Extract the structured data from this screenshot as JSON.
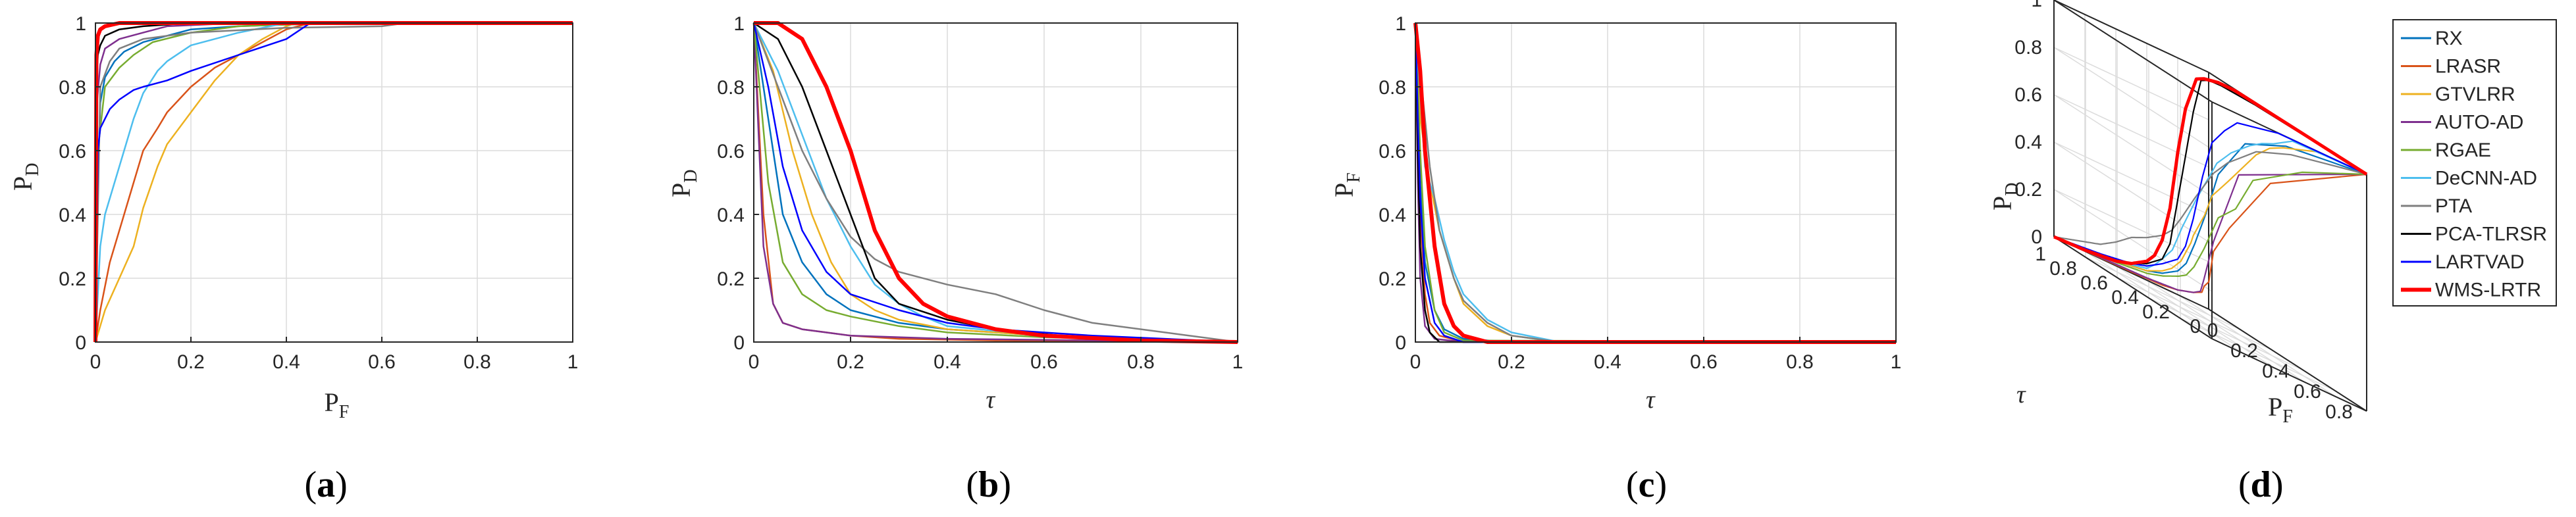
{
  "chart_data": [
    {
      "id": "a",
      "type": "line",
      "caption": "a",
      "xlabel": "P",
      "xlabel_sub": "F",
      "ylabel": "P",
      "ylabel_sub": "D",
      "xlim": [
        0,
        1
      ],
      "ylim": [
        0,
        1
      ],
      "xticks": [
        0,
        0.2,
        0.4,
        0.6,
        0.8,
        1
      ],
      "yticks": [
        0,
        0.2,
        0.4,
        0.6,
        0.8,
        1
      ],
      "grid": true,
      "series": [
        {
          "name": "RX",
          "color": "#0072bd",
          "x": [
            0,
            0.005,
            0.01,
            0.02,
            0.04,
            0.06,
            0.1,
            0.15,
            0.2,
            0.3,
            0.5,
            1
          ],
          "y": [
            0,
            0.5,
            0.75,
            0.83,
            0.88,
            0.91,
            0.94,
            0.96,
            0.98,
            0.99,
            1,
            1
          ]
        },
        {
          "name": "LRASR",
          "color": "#d95319",
          "x": [
            0,
            0.01,
            0.03,
            0.05,
            0.08,
            0.1,
            0.13,
            0.15,
            0.2,
            0.25,
            0.3,
            0.35,
            0.4,
            0.45,
            1
          ],
          "y": [
            0,
            0.1,
            0.25,
            0.35,
            0.5,
            0.6,
            0.67,
            0.72,
            0.8,
            0.86,
            0.9,
            0.94,
            0.98,
            1,
            1
          ]
        },
        {
          "name": "GTVLRR",
          "color": "#edb120",
          "x": [
            0,
            0.02,
            0.05,
            0.08,
            0.1,
            0.13,
            0.15,
            0.2,
            0.25,
            0.3,
            0.35,
            0.4,
            0.42,
            1
          ],
          "y": [
            0,
            0.1,
            0.2,
            0.3,
            0.42,
            0.55,
            0.62,
            0.72,
            0.82,
            0.9,
            0.95,
            0.99,
            1,
            1
          ]
        },
        {
          "name": "AUTO-AD",
          "color": "#7e2f8e",
          "x": [
            0,
            0.003,
            0.01,
            0.02,
            0.05,
            0.1,
            0.15,
            0.3,
            1
          ],
          "y": [
            0,
            0.75,
            0.87,
            0.92,
            0.95,
            0.97,
            0.99,
            1,
            1
          ]
        },
        {
          "name": "RGAE",
          "color": "#77ac30",
          "x": [
            0,
            0.005,
            0.02,
            0.05,
            0.08,
            0.12,
            0.2,
            0.3,
            0.5,
            1
          ],
          "y": [
            0,
            0.6,
            0.8,
            0.86,
            0.9,
            0.94,
            0.97,
            0.99,
            1,
            1
          ]
        },
        {
          "name": "DeCNN-AD",
          "color": "#4dbeee",
          "x": [
            0,
            0.01,
            0.02,
            0.04,
            0.06,
            0.08,
            0.1,
            0.13,
            0.15,
            0.2,
            0.3,
            0.4,
            1
          ],
          "y": [
            0,
            0.3,
            0.4,
            0.5,
            0.6,
            0.7,
            0.78,
            0.85,
            0.88,
            0.93,
            0.97,
            1,
            1
          ]
        },
        {
          "name": "PTA",
          "color": "#7f7f7f",
          "x": [
            0,
            0.01,
            0.03,
            0.05,
            0.1,
            0.2,
            0.4,
            0.6,
            0.65,
            0.9,
            0.95,
            1
          ],
          "y": [
            0,
            0.8,
            0.88,
            0.92,
            0.95,
            0.97,
            0.985,
            0.99,
            1,
            1,
            1,
            1
          ]
        },
        {
          "name": "PCA-TLRSR",
          "color": "#000000",
          "x": [
            0,
            0.002,
            0.005,
            0.01,
            0.02,
            0.05,
            0.1,
            0.2,
            1
          ],
          "y": [
            0,
            0.8,
            0.9,
            0.93,
            0.96,
            0.98,
            0.99,
            1,
            1
          ]
        },
        {
          "name": "LARTVAD",
          "color": "#0000ff",
          "x": [
            0,
            0.005,
            0.01,
            0.02,
            0.03,
            0.05,
            0.08,
            0.1,
            0.15,
            0.2,
            0.3,
            0.4,
            0.45,
            1
          ],
          "y": [
            0,
            0.6,
            0.67,
            0.7,
            0.73,
            0.76,
            0.79,
            0.8,
            0.82,
            0.85,
            0.9,
            0.95,
            1,
            1
          ]
        },
        {
          "name": "WMS-LRTR",
          "color": "#ff0000",
          "x": [
            0,
            0.002,
            0.005,
            0.01,
            0.02,
            0.05,
            0.1,
            1
          ],
          "y": [
            0,
            0.9,
            0.96,
            0.98,
            0.99,
            1,
            1,
            1
          ]
        }
      ]
    },
    {
      "id": "b",
      "type": "line",
      "caption": "b",
      "xlabel": "τ",
      "ylabel": "P",
      "ylabel_sub": "D",
      "xlim": [
        0,
        1
      ],
      "ylim": [
        0,
        1
      ],
      "xticks": [
        0,
        0.2,
        0.4,
        0.6,
        0.8,
        1
      ],
      "yticks": [
        0,
        0.2,
        0.4,
        0.6,
        0.8,
        1
      ],
      "grid": true,
      "series": [
        {
          "name": "RX",
          "color": "#0072bd",
          "x": [
            0,
            0.03,
            0.06,
            0.1,
            0.15,
            0.2,
            0.3,
            0.4,
            0.6,
            0.8,
            1
          ],
          "y": [
            1,
            0.7,
            0.4,
            0.25,
            0.15,
            0.1,
            0.06,
            0.04,
            0.02,
            0.01,
            0
          ]
        },
        {
          "name": "LRASR",
          "color": "#d95319",
          "x": [
            0,
            0.02,
            0.04,
            0.06,
            0.1,
            0.15,
            0.2,
            0.3,
            0.5,
            1
          ],
          "y": [
            1,
            0.4,
            0.12,
            0.06,
            0.04,
            0.03,
            0.02,
            0.01,
            0.005,
            0
          ]
        },
        {
          "name": "GTVLRR",
          "color": "#edb120",
          "x": [
            0,
            0.04,
            0.08,
            0.12,
            0.16,
            0.2,
            0.25,
            0.3,
            0.4,
            0.6,
            1
          ],
          "y": [
            1,
            0.85,
            0.6,
            0.4,
            0.25,
            0.15,
            0.1,
            0.07,
            0.04,
            0.02,
            0
          ]
        },
        {
          "name": "AUTO-AD",
          "color": "#7e2f8e",
          "x": [
            0,
            0.02,
            0.04,
            0.06,
            0.1,
            0.2,
            0.4,
            1
          ],
          "y": [
            1,
            0.3,
            0.12,
            0.06,
            0.04,
            0.02,
            0.01,
            0
          ]
        },
        {
          "name": "RGAE",
          "color": "#77ac30",
          "x": [
            0,
            0.03,
            0.06,
            0.1,
            0.15,
            0.2,
            0.3,
            0.4,
            0.6,
            1
          ],
          "y": [
            1,
            0.5,
            0.25,
            0.15,
            0.1,
            0.08,
            0.05,
            0.03,
            0.015,
            0
          ]
        },
        {
          "name": "DeCNN-AD",
          "color": "#4dbeee",
          "x": [
            0,
            0.05,
            0.1,
            0.15,
            0.2,
            0.25,
            0.3,
            0.35,
            0.4,
            0.6,
            1
          ],
          "y": [
            1,
            0.85,
            0.65,
            0.45,
            0.3,
            0.18,
            0.12,
            0.08,
            0.05,
            0.02,
            0
          ]
        },
        {
          "name": "PTA",
          "color": "#7f7f7f",
          "x": [
            0,
            0.05,
            0.1,
            0.15,
            0.2,
            0.25,
            0.3,
            0.4,
            0.5,
            0.6,
            0.7,
            1
          ],
          "y": [
            1,
            0.8,
            0.6,
            0.45,
            0.33,
            0.26,
            0.22,
            0.18,
            0.15,
            0.1,
            0.06,
            0
          ]
        },
        {
          "name": "PCA-TLRSR",
          "color": "#000000",
          "x": [
            0,
            0.05,
            0.1,
            0.15,
            0.2,
            0.25,
            0.3,
            0.4,
            0.5,
            0.7,
            1
          ],
          "y": [
            1,
            0.95,
            0.8,
            0.6,
            0.4,
            0.2,
            0.12,
            0.07,
            0.04,
            0.01,
            0
          ]
        },
        {
          "name": "LARTVAD",
          "color": "#0000ff",
          "x": [
            0,
            0.03,
            0.06,
            0.1,
            0.15,
            0.2,
            0.3,
            0.4,
            0.5,
            0.7,
            1
          ],
          "y": [
            1,
            0.8,
            0.55,
            0.35,
            0.22,
            0.15,
            0.1,
            0.06,
            0.04,
            0.02,
            0
          ]
        },
        {
          "name": "WMS-LRTR",
          "color": "#ff0000",
          "x": [
            0,
            0.05,
            0.1,
            0.15,
            0.2,
            0.25,
            0.3,
            0.35,
            0.4,
            0.5,
            0.6,
            0.8,
            1
          ],
          "y": [
            1,
            1,
            0.95,
            0.8,
            0.6,
            0.35,
            0.2,
            0.12,
            0.08,
            0.04,
            0.02,
            0.005,
            0
          ]
        }
      ]
    },
    {
      "id": "c",
      "type": "line",
      "caption": "c",
      "xlabel": "τ",
      "ylabel": "P",
      "ylabel_sub": "F",
      "xlim": [
        0,
        1
      ],
      "ylim": [
        0,
        1
      ],
      "xticks": [
        0,
        0.2,
        0.4,
        0.6,
        0.8,
        1
      ],
      "yticks": [
        0,
        0.2,
        0.4,
        0.6,
        0.8,
        1
      ],
      "grid": true,
      "series": [
        {
          "name": "RX",
          "color": "#0072bd",
          "x": [
            0,
            0.01,
            0.02,
            0.04,
            0.06,
            0.1,
            0.2,
            1
          ],
          "y": [
            1,
            0.5,
            0.25,
            0.1,
            0.04,
            0.01,
            0,
            0
          ]
        },
        {
          "name": "LRASR",
          "color": "#d95319",
          "x": [
            0,
            0.01,
            0.02,
            0.03,
            0.05,
            0.1,
            1
          ],
          "y": [
            1,
            0.4,
            0.15,
            0.06,
            0.02,
            0,
            0
          ]
        },
        {
          "name": "GTVLRR",
          "color": "#edb120",
          "x": [
            0,
            0.01,
            0.03,
            0.05,
            0.08,
            0.1,
            0.15,
            0.2,
            0.3,
            1
          ],
          "y": [
            1,
            0.7,
            0.5,
            0.35,
            0.2,
            0.12,
            0.05,
            0.02,
            0,
            0
          ]
        },
        {
          "name": "AUTO-AD",
          "color": "#7e2f8e",
          "x": [
            0,
            0.005,
            0.01,
            0.02,
            0.04,
            0.1,
            1
          ],
          "y": [
            1,
            0.5,
            0.2,
            0.05,
            0.01,
            0,
            0
          ]
        },
        {
          "name": "RGAE",
          "color": "#77ac30",
          "x": [
            0,
            0.01,
            0.02,
            0.04,
            0.06,
            0.1,
            1
          ],
          "y": [
            1,
            0.6,
            0.3,
            0.1,
            0.03,
            0.005,
            0
          ]
        },
        {
          "name": "DeCNN-AD",
          "color": "#4dbeee",
          "x": [
            0,
            0.02,
            0.04,
            0.06,
            0.08,
            0.1,
            0.15,
            0.2,
            0.3,
            1
          ],
          "y": [
            1,
            0.55,
            0.45,
            0.32,
            0.22,
            0.15,
            0.07,
            0.03,
            0,
            0
          ]
        },
        {
          "name": "PTA",
          "color": "#7f7f7f",
          "x": [
            0,
            0.01,
            0.03,
            0.05,
            0.08,
            0.1,
            0.15,
            0.2,
            0.3,
            1
          ],
          "y": [
            1,
            0.85,
            0.55,
            0.35,
            0.2,
            0.13,
            0.06,
            0.02,
            0,
            0
          ]
        },
        {
          "name": "PCA-TLRSR",
          "color": "#000000",
          "x": [
            0,
            0.005,
            0.01,
            0.02,
            0.03,
            0.05,
            1
          ],
          "y": [
            1,
            0.6,
            0.3,
            0.1,
            0.03,
            0,
            0
          ]
        },
        {
          "name": "LARTVAD",
          "color": "#0000ff",
          "x": [
            0,
            0.005,
            0.01,
            0.02,
            0.04,
            0.06,
            0.1,
            1
          ],
          "y": [
            1,
            0.7,
            0.45,
            0.2,
            0.06,
            0.02,
            0,
            0
          ]
        },
        {
          "name": "WMS-LRTR",
          "color": "#ff0000",
          "x": [
            0,
            0.01,
            0.02,
            0.04,
            0.06,
            0.08,
            0.1,
            0.15,
            1
          ],
          "y": [
            1,
            0.85,
            0.6,
            0.3,
            0.12,
            0.05,
            0.02,
            0,
            0
          ]
        }
      ]
    },
    {
      "id": "d",
      "type": "line",
      "caption": "d",
      "view": "3d",
      "xlabel": "P",
      "xlabel_sub": "F",
      "ylabel": "τ",
      "zlabel": "P",
      "zlabel_sub": "D",
      "xticks": [
        0,
        0.2,
        0.4,
        0.6,
        0.8
      ],
      "yticks": [
        0,
        0.2,
        0.4,
        0.6,
        0.8,
        1
      ],
      "zticks": [
        0,
        0.2,
        0.4,
        0.6,
        0.8,
        1
      ],
      "legend_position": "right",
      "grid": true
    }
  ]
}
